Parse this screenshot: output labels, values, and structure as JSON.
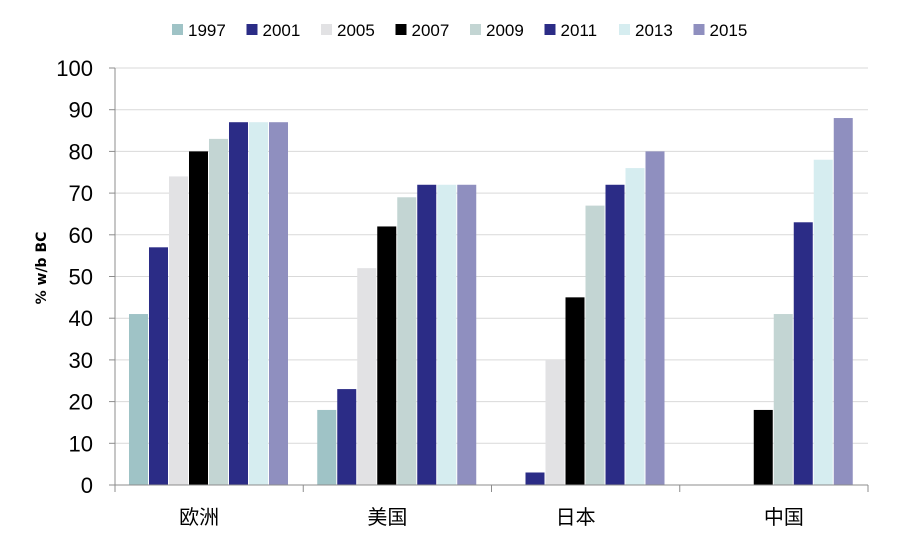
{
  "chart_data": {
    "type": "bar",
    "title": "",
    "xlabel": "",
    "ylabel": "% w/b BC",
    "ylim": [
      0,
      100
    ],
    "yticks": [
      0,
      10,
      20,
      30,
      40,
      50,
      60,
      70,
      80,
      90,
      100
    ],
    "grid": true,
    "legend_position": "top",
    "categories": [
      "欧洲",
      "美国",
      "日本",
      "中国"
    ],
    "series": [
      {
        "name": "1997",
        "color": "#9fc3c6",
        "values": [
          41,
          18,
          null,
          null
        ]
      },
      {
        "name": "2001",
        "color": "#2b2c86",
        "values": [
          57,
          23,
          3,
          null
        ]
      },
      {
        "name": "2005",
        "color": "#e2e2e4",
        "values": [
          74,
          52,
          30,
          null
        ]
      },
      {
        "name": "2007",
        "color": "#000000",
        "values": [
          80,
          62,
          45,
          18
        ]
      },
      {
        "name": "2009",
        "color": "#c3d5d3",
        "values": [
          83,
          69,
          67,
          41
        ]
      },
      {
        "name": "2011",
        "color": "#2b2c86",
        "values": [
          87,
          72,
          72,
          63
        ]
      },
      {
        "name": "2013",
        "color": "#d6edf0",
        "values": [
          87,
          72,
          76,
          78
        ]
      },
      {
        "name": "2015",
        "color": "#8f8fbf",
        "values": [
          87,
          72,
          80,
          88
        ]
      }
    ]
  }
}
